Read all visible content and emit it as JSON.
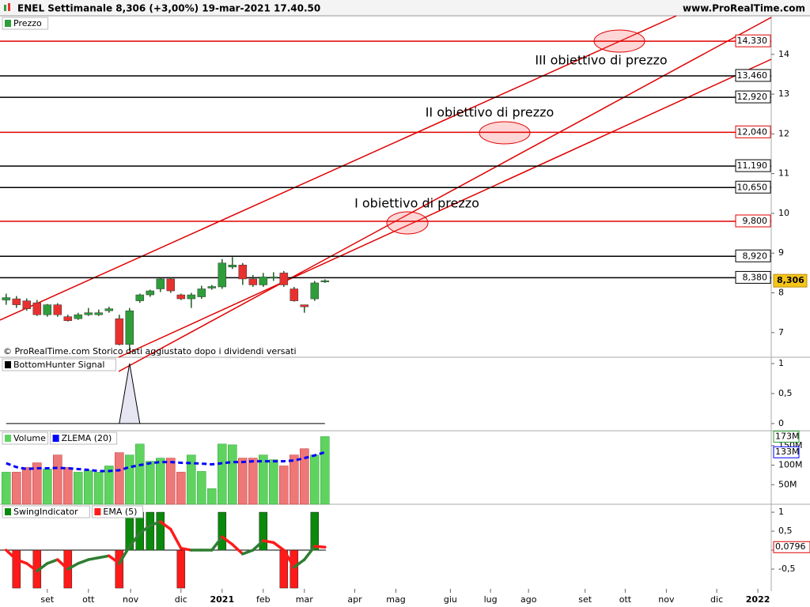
{
  "header": {
    "title": "ENEL Settimanale 8,306 (+3,00%) 19-mar-2021 17.40.50",
    "site": "www.ProRealTime.com"
  },
  "chart_data": [
    {
      "type": "candlestick",
      "title": "Prezzo",
      "source": "© ProRealTime.com  Storico dati aggiustato dopo i dividendi versati",
      "open": [
        7.82,
        7.85,
        7.8,
        7.75,
        7.45,
        7.7,
        7.4,
        7.35,
        7.45,
        7.45,
        7.55,
        7.35,
        6.7,
        7.8,
        7.95,
        8.1,
        8.35,
        7.95,
        7.85,
        7.9,
        8.12,
        8.15,
        8.65,
        8.7,
        8.35,
        8.2,
        8.38,
        8.5,
        8.1,
        7.7,
        7.85,
        8.3
      ],
      "high": [
        7.98,
        7.92,
        7.86,
        7.82,
        7.72,
        7.74,
        7.45,
        7.5,
        7.62,
        7.58,
        7.65,
        7.45,
        7.62,
        7.98,
        8.08,
        8.38,
        8.4,
        7.98,
        8.0,
        8.18,
        8.2,
        8.85,
        8.9,
        8.75,
        8.45,
        8.5,
        8.52,
        8.55,
        8.15,
        7.7,
        8.3,
        8.34
      ],
      "low": [
        7.7,
        7.62,
        7.55,
        7.42,
        7.4,
        7.4,
        7.28,
        7.32,
        7.42,
        7.42,
        7.5,
        6.68,
        6.55,
        7.75,
        7.9,
        8.02,
        8.0,
        7.82,
        7.62,
        7.85,
        8.08,
        8.1,
        8.6,
        8.2,
        8.15,
        8.15,
        8.3,
        8.15,
        7.78,
        7.5,
        7.8,
        8.25
      ],
      "close": [
        7.88,
        7.7,
        7.6,
        7.45,
        7.7,
        7.45,
        7.3,
        7.45,
        7.5,
        7.5,
        7.6,
        6.7,
        7.55,
        7.95,
        8.05,
        8.35,
        8.05,
        7.85,
        7.95,
        8.1,
        8.16,
        8.75,
        8.7,
        8.35,
        8.2,
        8.4,
        8.4,
        8.2,
        7.8,
        7.65,
        8.25,
        8.306
      ],
      "up_color": "#2e9e3a",
      "down_color": "#e8312f",
      "xlim": [
        -0.6,
        74.4
      ],
      "ylim": [
        6.38,
        14.97
      ],
      "yticks": [
        7,
        8,
        9,
        10,
        11,
        12,
        13,
        14
      ],
      "levels": [
        {
          "value": 14.33,
          "label": "14,330",
          "color": "#e00000"
        },
        {
          "value": 13.46,
          "label": "13,460",
          "color": "#000000"
        },
        {
          "value": 12.92,
          "label": "12,920",
          "color": "#000000"
        },
        {
          "value": 12.04,
          "label": "12,040",
          "color": "#e00000"
        },
        {
          "value": 11.19,
          "label": "11,190",
          "color": "#000000"
        },
        {
          "value": 10.65,
          "label": "10,650",
          "color": "#000000"
        },
        {
          "value": 9.8,
          "label": "9,800",
          "color": "#e00000"
        },
        {
          "value": 8.92,
          "label": "8,920",
          "color": "#000000"
        },
        {
          "value": 8.38,
          "label": "8,380",
          "color": "#000000"
        }
      ],
      "last": {
        "value": 8.306,
        "label": "8,306"
      },
      "annotations": [
        "III obiettivo di prezzo",
        "II obiettivo di prezzo",
        "I obiettivo di prezzo"
      ]
    },
    {
      "type": "area",
      "series": [
        {
          "name": "BottomHunter Signal",
          "color": "#000000",
          "values": [
            0,
            0,
            0,
            0,
            0,
            0,
            0,
            0,
            0,
            0,
            0,
            0,
            1,
            0,
            0,
            0,
            0,
            0,
            0,
            0,
            0,
            0,
            0,
            0,
            0,
            0,
            0,
            0,
            0,
            0,
            0,
            0
          ]
        }
      ],
      "xlim": [
        -0.6,
        74.4
      ],
      "ylim": [
        -0.12,
        1.105
      ],
      "yticks": [
        1,
        {
          "value": 0.5,
          "label": "0,5"
        },
        0
      ]
    },
    {
      "type": "volume",
      "series": [
        {
          "name": "Volume",
          "values": [
            82000000,
            82000000,
            94000000,
            106000000,
            90000000,
            126000000,
            94000000,
            82000000,
            86000000,
            82000000,
            98000000,
            132000000,
            126000000,
            154000000,
            110000000,
            118000000,
            118000000,
            82000000,
            126000000,
            84000000,
            40000000,
            154000000,
            152000000,
            118000000,
            118000000,
            126000000,
            114000000,
            98000000,
            126000000,
            142000000,
            126000000,
            173000000
          ],
          "last_label": "173M"
        },
        {
          "name": "ZLEMA (20)",
          "color": "#0000ff",
          "values": [
            105000000,
            95000000,
            90000000,
            92000000,
            92000000,
            93000000,
            92000000,
            90000000,
            88000000,
            85000000,
            85000000,
            87000000,
            95000000,
            100000000,
            105000000,
            108000000,
            108000000,
            106000000,
            105000000,
            104000000,
            102000000,
            105000000,
            108000000,
            108000000,
            110000000,
            110000000,
            110000000,
            110000000,
            112000000,
            118000000,
            125000000,
            133000000
          ],
          "last_label": "133M"
        }
      ],
      "xlim": [
        -0.6,
        74.4
      ],
      "ylim": [
        0,
        188000000
      ],
      "yticks": [
        {
          "value": 50000000,
          "label": "50M"
        },
        {
          "value": 100000000,
          "label": "100M"
        },
        {
          "value": 150000000,
          "label": "150M"
        }
      ]
    },
    {
      "type": "swing",
      "series": [
        {
          "name": "SwingIndicator",
          "values": [
            0,
            -1,
            0,
            -1,
            0,
            0,
            -1,
            0,
            0,
            0,
            0,
            -1,
            1,
            1,
            1,
            1,
            0,
            -1,
            0,
            0,
            0,
            1,
            0,
            0,
            0,
            1,
            0,
            -1,
            -1,
            0,
            1,
            0
          ]
        },
        {
          "name": "EMA (5)",
          "values": [
            0,
            -0.25,
            -0.35,
            -0.55,
            -0.35,
            -0.25,
            -0.5,
            -0.35,
            -0.25,
            -0.2,
            -0.15,
            -0.35,
            0.1,
            0.45,
            0.65,
            0.75,
            0.55,
            0.05,
            0,
            0,
            0,
            0.35,
            0.15,
            -0.1,
            0,
            0.25,
            0.2,
            0,
            -0.45,
            -0.25,
            0.1,
            0.0796
          ],
          "last_label": "0,0796"
        }
      ],
      "up_color": "#0a8a0a",
      "down_color": "#ff1a1a",
      "xlim": [
        -0.6,
        74.4
      ],
      "ylim": [
        -1.02,
        1.21
      ],
      "yticks": [
        {
          "value": -0.5,
          "label": "-0,5"
        },
        0,
        {
          "value": 0.5,
          "label": "0,5"
        },
        1
      ],
      "xticks": [
        {
          "value": 4,
          "label": "set"
        },
        {
          "value": 8,
          "label": "ott"
        },
        {
          "value": 12.1,
          "label": "nov"
        },
        {
          "value": 17,
          "label": "dic"
        },
        {
          "value": 21,
          "label": "2021"
        },
        {
          "value": 25,
          "label": "feb"
        },
        {
          "value": 29,
          "label": "mar"
        },
        {
          "value": 33.9,
          "label": "apr"
        },
        {
          "value": 37.9,
          "label": "mag"
        },
        {
          "value": 43.2,
          "label": "giu"
        },
        {
          "value": 47.1,
          "label": "lug"
        },
        {
          "value": 50.8,
          "label": "ago"
        },
        {
          "value": 56.3,
          "label": "set"
        },
        {
          "value": 60.2,
          "label": "ott"
        },
        {
          "value": 64.2,
          "label": "nov"
        },
        {
          "value": 69.1,
          "label": "dic"
        },
        {
          "value": 73.1,
          "label": "2022"
        }
      ]
    }
  ]
}
